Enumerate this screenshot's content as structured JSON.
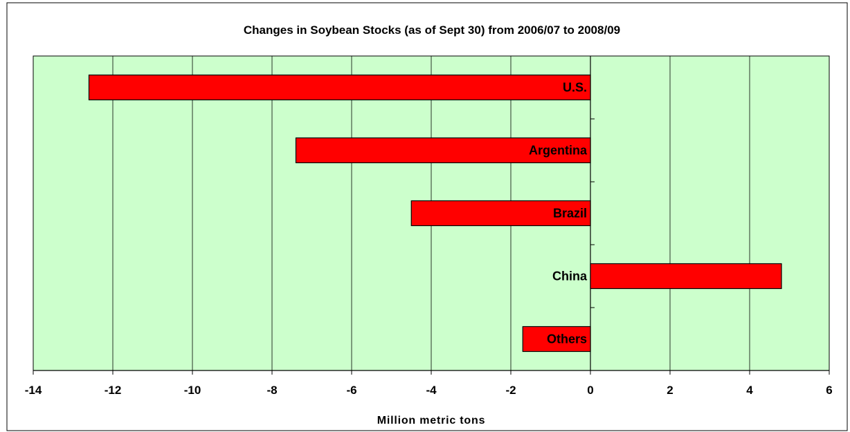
{
  "chart_data": {
    "type": "bar",
    "orientation": "horizontal",
    "title": "Changes in Soybean Stocks (as of Sept 30) from 2006/07 to 2008/09",
    "xlabel": "Million metric tons",
    "ylabel": "",
    "xlim": [
      -14,
      6
    ],
    "x_ticks": [
      -14,
      -12,
      -10,
      -8,
      -6,
      -4,
      -2,
      0,
      2,
      4,
      6
    ],
    "x_tick_labels": [
      "-14",
      "-12",
      "-10",
      "-8",
      "-6",
      "-4",
      "-2",
      "0",
      "2",
      "4",
      "6"
    ],
    "categories": [
      "U.S.",
      "Argentina",
      "Brazil",
      "China",
      "Others"
    ],
    "values": [
      -12.6,
      -7.4,
      -4.5,
      4.8,
      -1.7
    ],
    "grid": "vertical major gridlines",
    "legend": "none",
    "colors": {
      "bar_fill": "#ff0000",
      "bar_stroke": "#000000",
      "plot_background": "#ccffcc",
      "gridline": "#000000",
      "frame": "#000000"
    }
  }
}
